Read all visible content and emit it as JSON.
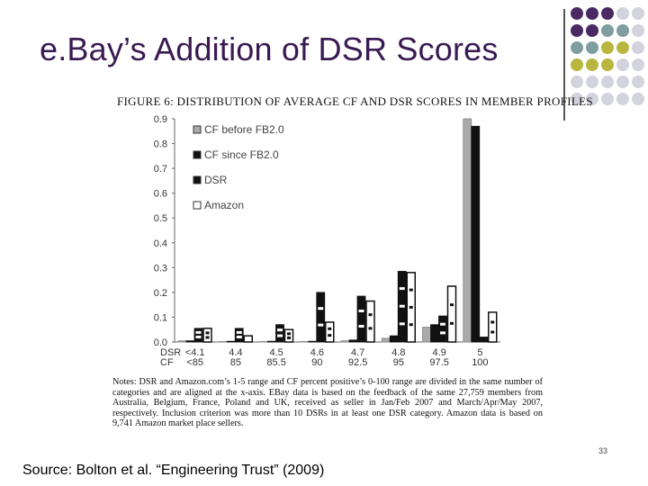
{
  "slide": {
    "title": "e.Bay’s Addition of DSR Scores",
    "page_number": "33",
    "source": "Source: Bolton et al. “Engineering Trust” (2009)",
    "decoration_colors": [
      "#4b2a63",
      "#7f9ea0",
      "#b9b640",
      "#d3d3dd"
    ]
  },
  "figure": {
    "title": "FIGURE 6: DISTRIBUTION OF AVERAGE CF AND DSR SCORES IN MEMBER PROFILES",
    "notes": "Notes: DSR and Amazon.com’s 1-5 range and CF percent positive’s 0-100 range are divided in the same number of categories and are aligned at the x-axis. EBay data is based on the feedback of the same 27,759 members from Australia, Belgium, France, Poland and UK, received as seller in Jan/Feb 2007 and March/Apr/May 2007, respectively. Inclusion criterion was more than 10 DSRs in at least one DSR category. Amazon data is based on 9,741 Amazon market place sellers."
  },
  "chart_data": {
    "type": "bar",
    "ylim": [
      0,
      0.9
    ],
    "yticks": [
      "0.0",
      "0.1",
      "0.2",
      "0.3",
      "0.4",
      "0.5",
      "0.6",
      "0.7",
      "0.8",
      "0.9"
    ],
    "row_labels": [
      "DSR",
      "CF"
    ],
    "categories_dsr": [
      "<4.1",
      "4.4",
      "4.5",
      "4.6",
      "4.7",
      "4.8",
      "4.9",
      "5"
    ],
    "categories_cf": [
      "<85",
      "85",
      "85.5",
      "90",
      "92.5",
      "95",
      "97.5",
      "100"
    ],
    "series": [
      {
        "name": "CF before FB2.0",
        "color": "#aaaaaa",
        "values": [
          0.005,
          0.002,
          0.002,
          0.002,
          0.005,
          0.015,
          0.06,
          0.9
        ]
      },
      {
        "name": "CF since FB2.0",
        "color": "#111111",
        "values": [
          0.005,
          0.003,
          0.003,
          0.003,
          0.008,
          0.025,
          0.07,
          0.87
        ]
      },
      {
        "name": "DSR",
        "color": "#111111",
        "values": [
          0.055,
          0.055,
          0.07,
          0.2,
          0.185,
          0.285,
          0.105,
          0.02
        ]
      },
      {
        "name": "Amazon",
        "color": "#ffffff",
        "values": [
          0.055,
          0.025,
          0.05,
          0.08,
          0.165,
          0.28,
          0.225,
          0.12
        ]
      }
    ]
  }
}
